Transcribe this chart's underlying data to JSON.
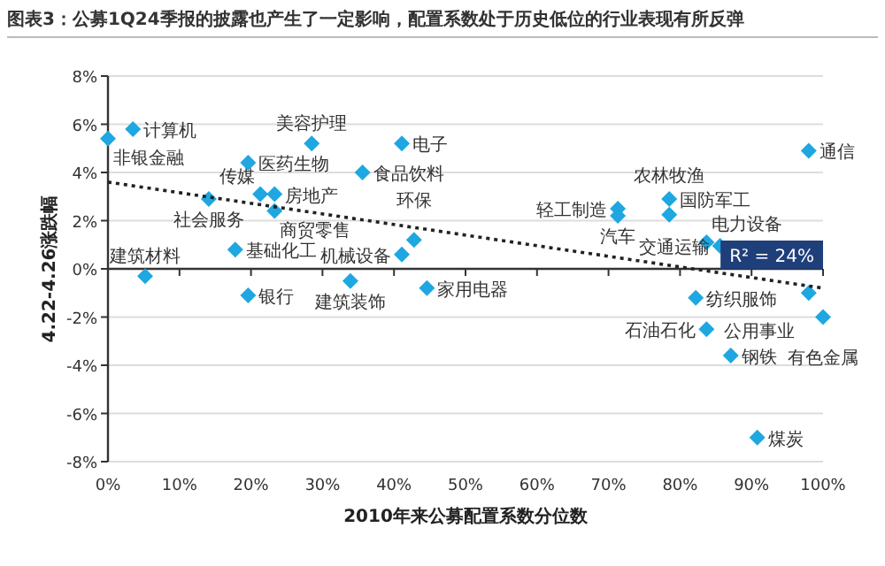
{
  "chart_data": {
    "type": "scatter",
    "title": "图表3：公募1Q24季报的披露也产生了一定影响，配置系数处于历史低位的行业表现有所反弹",
    "xlabel": "2010年来公募配置系数分位数",
    "ylabel": "4.22-4.26涨跌幅",
    "xlim": [
      0,
      100
    ],
    "xticks": [
      {
        "value": 0,
        "label": "0%"
      },
      {
        "value": 10,
        "label": "10%"
      },
      {
        "value": 20,
        "label": "20%"
      },
      {
        "value": 30,
        "label": "30%"
      },
      {
        "value": 40,
        "label": "40%"
      },
      {
        "value": 50,
        "label": "50%"
      },
      {
        "value": 60,
        "label": "60%"
      },
      {
        "value": 70,
        "label": "70%"
      },
      {
        "value": 80,
        "label": "80%"
      },
      {
        "value": 90,
        "label": "90%"
      },
      {
        "value": 100,
        "label": "100%"
      }
    ],
    "ylim": [
      -8,
      8
    ],
    "yticks": [
      {
        "value": -8,
        "label": "-8%"
      },
      {
        "value": -6,
        "label": "-6%"
      },
      {
        "value": -4,
        "label": "-4%"
      },
      {
        "value": -2,
        "label": "-2%"
      },
      {
        "value": 0,
        "label": "0%"
      },
      {
        "value": 2,
        "label": "2%"
      },
      {
        "value": 4,
        "label": "4%"
      },
      {
        "value": 6,
        "label": "6%"
      },
      {
        "value": 8,
        "label": "8%"
      }
    ],
    "grid": "y",
    "marker": "diamond",
    "series": [
      {
        "color": "#1ea7e1",
        "x": [
          0,
          3.5,
          5.2,
          14.1,
          17.8,
          19.6,
          19.6,
          21.3,
          23.3,
          23.3,
          28.5,
          35.6,
          41.1,
          42.8,
          41.1,
          33.9,
          44.6,
          98,
          71.3,
          71.3,
          78.5,
          78.5,
          83.7,
          85.6,
          82.2,
          98,
          83.7,
          87.1,
          100,
          90.8
        ],
        "values": [
          5.4,
          5.8,
          -0.3,
          2.9,
          0.8,
          -1.1,
          4.4,
          3.1,
          3.1,
          2.4,
          5.2,
          4.0,
          5.2,
          1.2,
          0.6,
          -0.5,
          -0.8,
          4.9,
          2.5,
          2.2,
          2.9,
          2.25,
          1.1,
          0.95,
          -1.2,
          -1.0,
          -2.5,
          -3.6,
          -2.0,
          -7.0
        ]
      },
      {
        "type": "line",
        "color": "#222222",
        "line_style": "dotted",
        "marker": "none",
        "x": [
          0,
          100
        ],
        "values": [
          3.6,
          -0.8
        ]
      }
    ],
    "annotations": [
      {
        "text": "非银金融",
        "x": 0,
        "y": 5.4
      },
      {
        "text": "计算机",
        "x": 3.5,
        "y": 5.8
      },
      {
        "text": "建筑材料",
        "x": 5.2,
        "y": -0.3
      },
      {
        "text": "社会服务",
        "x": 14.1,
        "y": 2.9
      },
      {
        "text": "基础化工",
        "x": 17.8,
        "y": 0.8
      },
      {
        "text": "银行",
        "x": 19.6,
        "y": -1.1
      },
      {
        "text": "医药生物",
        "x": 19.6,
        "y": 4.4
      },
      {
        "text": "传媒",
        "x": 21.3,
        "y": 3.1
      },
      {
        "text": "房地产",
        "x": 23.3,
        "y": 3.1
      },
      {
        "text": "商贸零售",
        "x": 23.3,
        "y": 2.4
      },
      {
        "text": "美容护理",
        "x": 28.5,
        "y": 5.2
      },
      {
        "text": "食品饮料",
        "x": 35.6,
        "y": 4.0
      },
      {
        "text": "电子",
        "x": 41.1,
        "y": 5.2
      },
      {
        "text": "环保",
        "x": 42.8,
        "y": 1.2
      },
      {
        "text": "机械设备",
        "x": 41.1,
        "y": 0.6
      },
      {
        "text": "建筑装饰",
        "x": 33.9,
        "y": -0.5
      },
      {
        "text": "家用电器",
        "x": 44.6,
        "y": -0.8
      },
      {
        "text": "通信",
        "x": 98,
        "y": 4.9
      },
      {
        "text": "轻工制造",
        "x": 71.3,
        "y": 2.5
      },
      {
        "text": "汽车",
        "x": 71.3,
        "y": 2.2
      },
      {
        "text": "国防军工",
        "x": 78.5,
        "y": 2.9
      },
      {
        "text": "农林牧渔",
        "x": 78.5,
        "y": 2.25
      },
      {
        "text": "电力设备",
        "x": 83.7,
        "y": 1.1
      },
      {
        "text": "交通运输",
        "x": 85.6,
        "y": 0.95
      },
      {
        "text": "纺织服饰",
        "x": 82.2,
        "y": -1.2
      },
      {
        "text": "公用事业",
        "x": 98,
        "y": -1.0
      },
      {
        "text": "石油石化",
        "x": 83.7,
        "y": -2.5
      },
      {
        "text": "钢铁",
        "x": 87.1,
        "y": -3.6
      },
      {
        "text": "有色金属",
        "x": 100,
        "y": -2.0
      },
      {
        "text": "煤炭",
        "x": 90.8,
        "y": -7.0
      },
      "R² = 24%"
    ]
  }
}
